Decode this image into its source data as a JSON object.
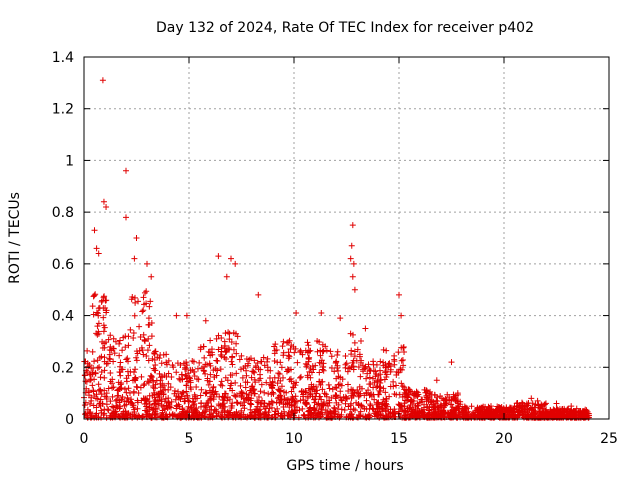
{
  "chart_data": {
    "type": "scatter",
    "title": "Day 132 of 2024, Rate Of TEC Index for receiver p402",
    "xlabel": "GPS time / hours",
    "ylabel": "ROTI / TECUs",
    "xlim": [
      0,
      25
    ],
    "ylim": [
      0,
      1.4
    ],
    "xticks": [
      0,
      5,
      10,
      15,
      20,
      25
    ],
    "xtick_labels": [
      "0",
      "5",
      "10",
      "15",
      "20",
      "25"
    ],
    "yticks": [
      0,
      0.2,
      0.4,
      0.6,
      0.8,
      1.0,
      1.2,
      1.4
    ],
    "ytick_labels": [
      "0",
      "0.2",
      "0.4",
      "0.6",
      "0.8",
      "1",
      "1.2",
      "1.4"
    ],
    "grid": true,
    "marker": "plus",
    "color": "#e00000",
    "series": [
      {
        "name": "ROTI",
        "points": [
          [
            0.9,
            1.31
          ],
          [
            2.0,
            0.96
          ],
          [
            2.0,
            0.78
          ],
          [
            0.95,
            0.84
          ],
          [
            1.05,
            0.82
          ],
          [
            0.5,
            0.73
          ],
          [
            0.6,
            0.66
          ],
          [
            0.7,
            0.64
          ],
          [
            2.5,
            0.7
          ],
          [
            2.4,
            0.62
          ],
          [
            3.0,
            0.6
          ],
          [
            3.2,
            0.55
          ],
          [
            12.8,
            0.75
          ],
          [
            12.75,
            0.67
          ],
          [
            12.7,
            0.62
          ],
          [
            12.85,
            0.6
          ],
          [
            12.8,
            0.55
          ],
          [
            12.9,
            0.5
          ],
          [
            6.4,
            0.63
          ],
          [
            7.0,
            0.62
          ],
          [
            7.2,
            0.6
          ],
          [
            6.8,
            0.55
          ],
          [
            8.3,
            0.48
          ],
          [
            15.0,
            0.48
          ],
          [
            15.1,
            0.4
          ],
          [
            4.4,
            0.4
          ],
          [
            4.9,
            0.4
          ],
          [
            5.8,
            0.38
          ],
          [
            11.3,
            0.41
          ],
          [
            10.1,
            0.41
          ],
          [
            12.2,
            0.39
          ],
          [
            13.4,
            0.35
          ],
          [
            17.5,
            0.22
          ],
          [
            16.8,
            0.15
          ],
          [
            17.8,
            0.1
          ],
          [
            21.3,
            0.08
          ],
          [
            21.6,
            0.07
          ],
          [
            22.5,
            0.06
          ],
          [
            23.2,
            0.05
          ]
        ]
      }
    ]
  }
}
